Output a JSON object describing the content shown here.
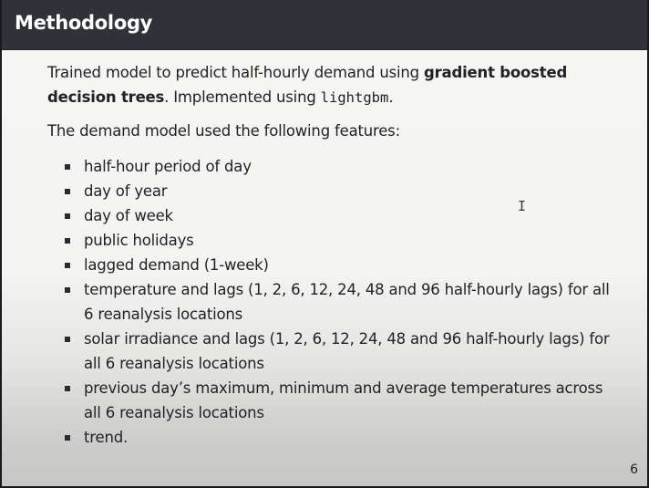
{
  "slide": {
    "title": "Methodology",
    "intro": {
      "text_before": "Trained model to predict half-hourly demand using ",
      "bold": "gradient boosted decision trees",
      "text_middle": ". Implemented using ",
      "code": "lightgbm",
      "text_after": "."
    },
    "features_heading": "The demand model used the following features:",
    "features": [
      "half-hour period of day",
      "day of year",
      "day of week",
      "public holidays",
      "lagged demand (1-week)",
      "temperature and lags (1, 2, 6, 12, 24, 48 and 96 half-hourly lags) for all 6 reanalysis locations",
      "solar irradiance and lags (1, 2, 6, 12, 24, 48 and 96 half-hourly lags) for all 6 reanalysis locations",
      "previous day’s maximum, minimum and average temperatures across all 6 reanalysis locations",
      "trend."
    ],
    "page_number": "6",
    "cursor_icon": "text-cursor-icon"
  }
}
